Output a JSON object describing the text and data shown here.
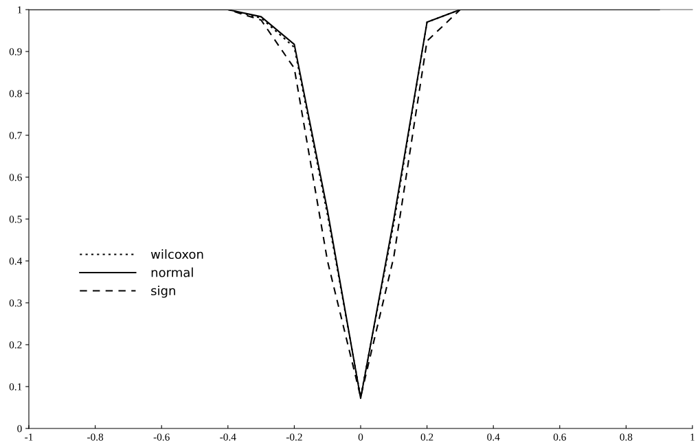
{
  "chart_data": {
    "type": "line",
    "x": [
      -1,
      -0.9,
      -0.8,
      -0.7,
      -0.6,
      -0.5,
      -0.4,
      -0.3,
      -0.2,
      -0.1,
      0,
      0.1,
      0.2,
      0.3,
      0.4,
      0.5,
      0.6,
      0.7,
      0.8,
      0.9
    ],
    "series": [
      {
        "name": "wilcoxon",
        "color": "#000000",
        "line_style": "dotted",
        "values": [
          1,
          1,
          1,
          1,
          1,
          1,
          1,
          0.98,
          0.91,
          0.51,
          0.075,
          0.49,
          0.97,
          1,
          1,
          1,
          1,
          1,
          1,
          1
        ]
      },
      {
        "name": "normal",
        "color": "#000000",
        "line_style": "solid",
        "values": [
          1,
          1,
          1,
          1,
          1,
          1,
          1,
          0.983,
          0.917,
          0.52,
          0.072,
          0.5,
          0.97,
          1,
          1,
          1,
          1,
          1,
          1,
          1
        ]
      },
      {
        "name": "sign",
        "color": "#000000",
        "line_style": "dashed",
        "values": [
          1,
          1,
          1,
          1,
          1,
          1,
          1,
          0.975,
          0.86,
          0.4,
          0.075,
          0.41,
          0.925,
          1,
          1,
          1,
          1,
          1,
          1,
          1
        ]
      }
    ],
    "xlim": [
      -1,
      1
    ],
    "ylim": [
      0,
      1
    ],
    "xticks": [
      -1,
      -0.8,
      -0.6,
      -0.4,
      -0.2,
      0,
      0.2,
      0.4,
      0.6,
      0.8,
      1
    ],
    "yticks": [
      0,
      0.1,
      0.2,
      0.3,
      0.4,
      0.5,
      0.6,
      0.7,
      0.8,
      0.9,
      1
    ],
    "grid": false,
    "legend": "left"
  }
}
